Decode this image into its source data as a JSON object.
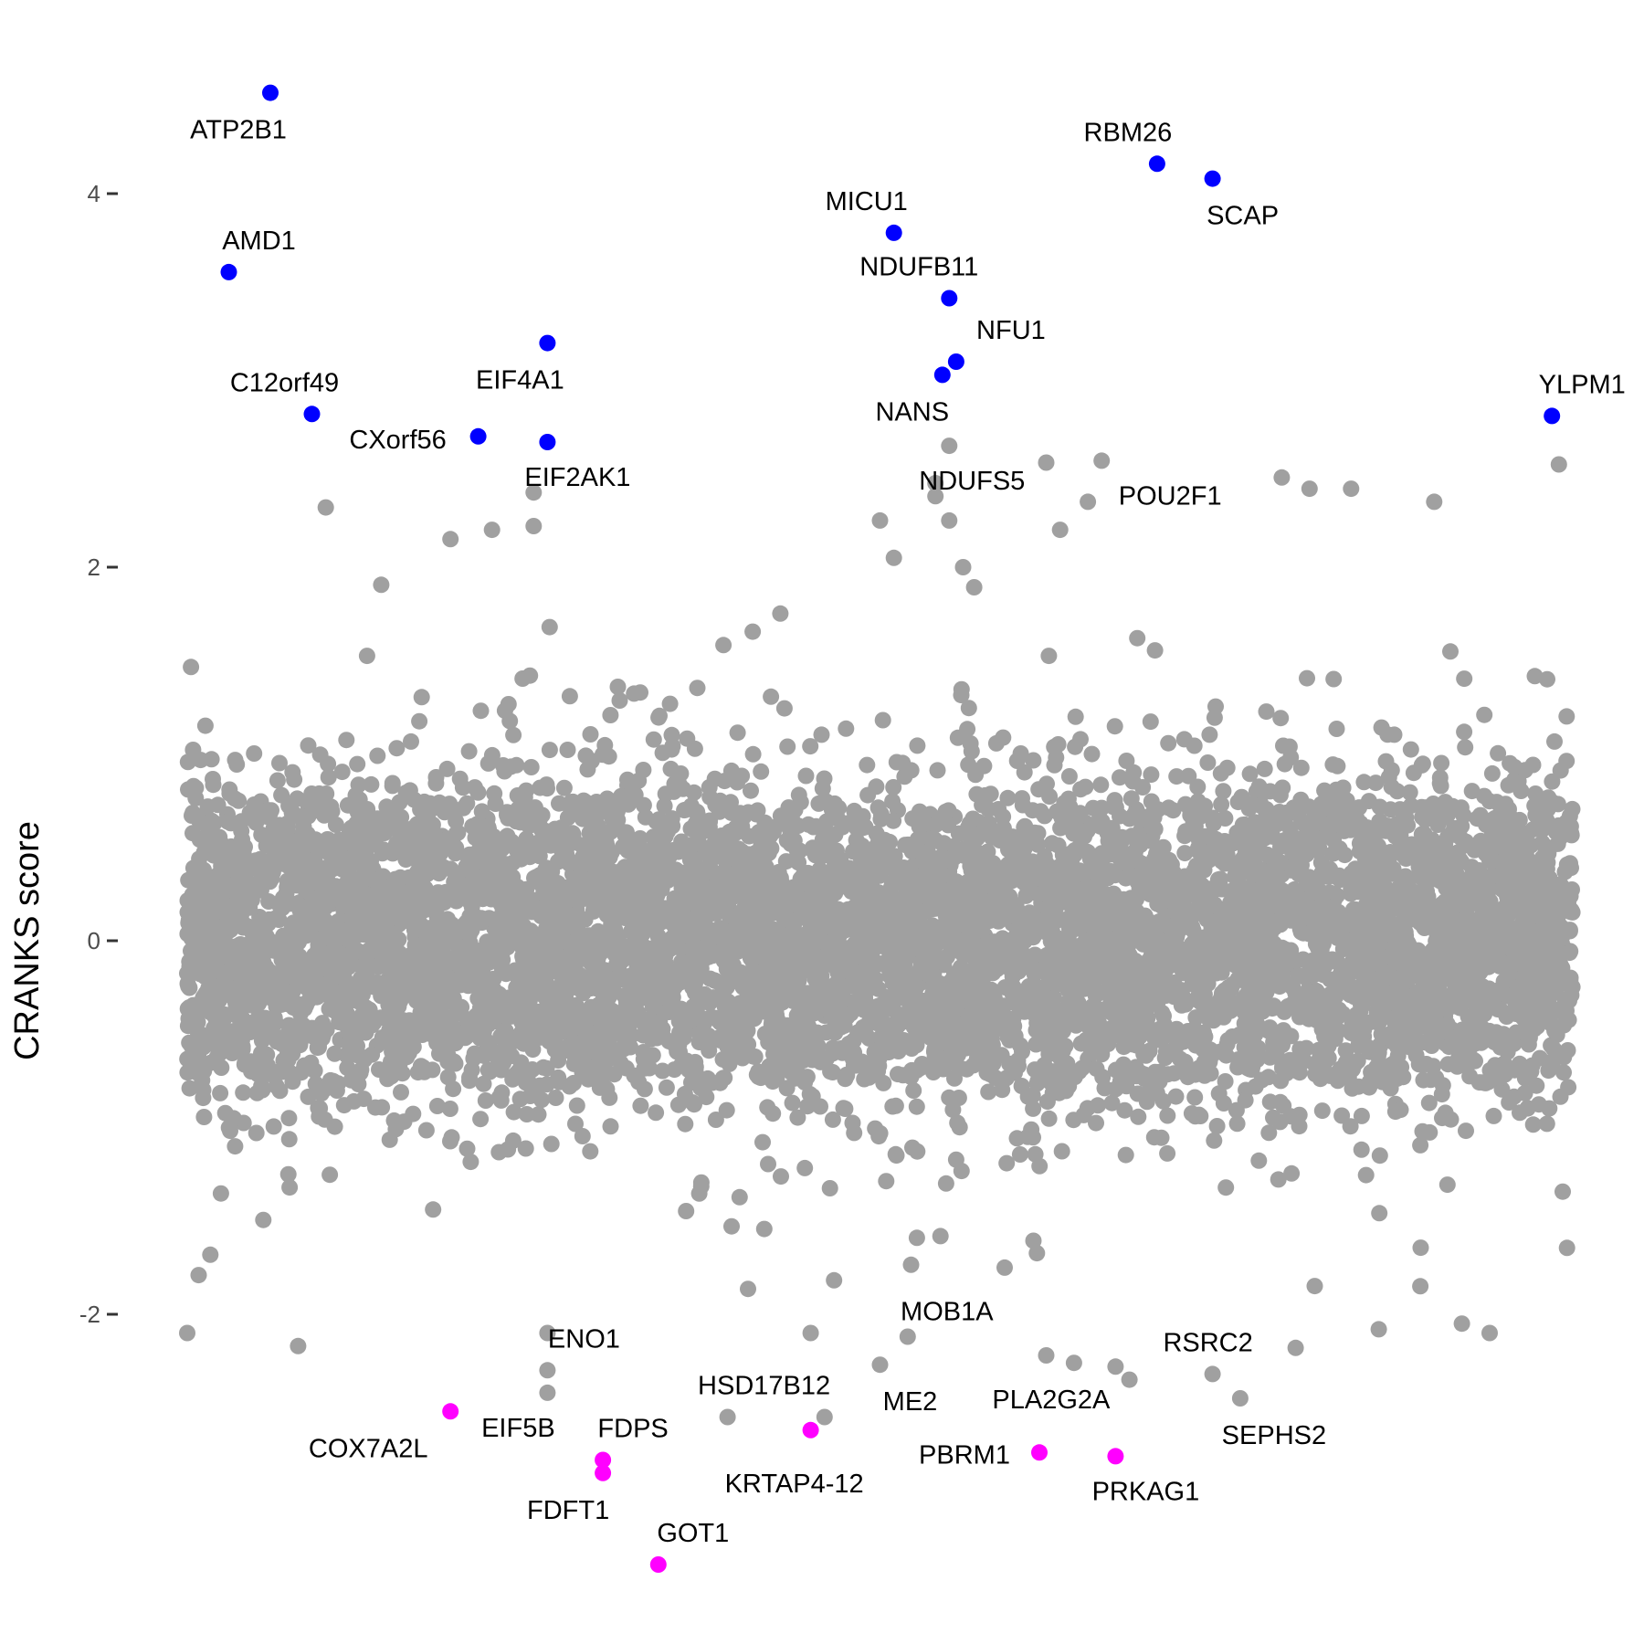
{
  "chart_data": {
    "type": "scatter",
    "ylabel": "CRANKS score",
    "xlabel": "",
    "ylim": [
      -3.45,
      4.8
    ],
    "xlim": [
      0,
      1
    ],
    "yticks": [
      -2,
      0,
      2,
      4
    ],
    "grid": false,
    "colors": {
      "background": "#a0a0a0",
      "positive": "#0000ff",
      "negative": "#ff00ff",
      "text": "#000000",
      "tick": "#4d4d4d"
    },
    "background_series": {
      "name": "",
      "count": 5600,
      "seed": 20240607,
      "note": "",
      "core_range": [
        -1.5,
        1.5
      ],
      "extra_points": [
        {
          "x": 0.1,
          "y": 2.32
        },
        {
          "x": 0.19,
          "y": 2.15
        },
        {
          "x": 0.22,
          "y": 2.2
        },
        {
          "x": 0.25,
          "y": 2.4
        },
        {
          "x": 0.25,
          "y": 2.22
        },
        {
          "x": 0.5,
          "y": 2.25
        },
        {
          "x": 0.51,
          "y": 2.05
        },
        {
          "x": 0.54,
          "y": 2.38
        },
        {
          "x": 0.54,
          "y": 2.45
        },
        {
          "x": 0.55,
          "y": 2.25
        },
        {
          "x": 0.56,
          "y": 2.0
        },
        {
          "x": 0.62,
          "y": 2.56
        },
        {
          "x": 0.63,
          "y": 2.2
        },
        {
          "x": 0.81,
          "y": 2.42
        },
        {
          "x": 0.79,
          "y": 2.48
        },
        {
          "x": 0.84,
          "y": 2.42
        },
        {
          "x": 0.99,
          "y": 2.55
        },
        {
          "x": 0.9,
          "y": 2.35
        },
        {
          "x": 0.65,
          "y": 2.35
        },
        {
          "x": 0.0,
          "y": -2.1
        },
        {
          "x": 0.08,
          "y": -2.17
        },
        {
          "x": 0.26,
          "y": -2.1
        },
        {
          "x": 0.45,
          "y": -2.1
        },
        {
          "x": 0.46,
          "y": -2.55
        },
        {
          "x": 0.59,
          "y": -1.75
        },
        {
          "x": 0.62,
          "y": -2.22
        },
        {
          "x": 0.67,
          "y": -2.28
        },
        {
          "x": 0.68,
          "y": -2.35
        },
        {
          "x": 0.8,
          "y": -2.18
        },
        {
          "x": 0.86,
          "y": -2.08
        },
        {
          "x": 0.92,
          "y": -2.05
        },
        {
          "x": 0.94,
          "y": -2.1
        },
        {
          "x": 0.89,
          "y": -1.85
        }
      ]
    },
    "highlighted": [
      {
        "gene": "ATP2B1",
        "x": 0.06,
        "y": 4.54,
        "group": "positive"
      },
      {
        "gene": "AMD1",
        "x": 0.03,
        "y": 3.58,
        "group": "positive"
      },
      {
        "gene": "C12orf49",
        "x": 0.09,
        "y": 2.82,
        "group": "positive"
      },
      {
        "gene": "CXorf56",
        "x": 0.21,
        "y": 2.7,
        "group": "positive"
      },
      {
        "gene": "EIF4A1",
        "x": 0.26,
        "y": 3.2,
        "group": "positive"
      },
      {
        "gene": "EIF2AK1",
        "x": 0.26,
        "y": 2.67,
        "group": "positive"
      },
      {
        "gene": "MICU1",
        "x": 0.51,
        "y": 3.79,
        "group": "positive"
      },
      {
        "gene": "NDUFB11",
        "x": 0.55,
        "y": 3.44,
        "group": "positive"
      },
      {
        "gene": "NFU1",
        "x": 0.555,
        "y": 3.1,
        "group": "positive"
      },
      {
        "gene": "NANS",
        "x": 0.545,
        "y": 3.03,
        "group": "positive"
      },
      {
        "gene": "NDUFS5",
        "x": 0.55,
        "y": 2.65,
        "group": "background"
      },
      {
        "gene": "POU2F1",
        "x": 0.66,
        "y": 2.57,
        "group": "background"
      },
      {
        "gene": "RBM26",
        "x": 0.7,
        "y": 4.16,
        "group": "positive"
      },
      {
        "gene": "SCAP",
        "x": 0.74,
        "y": 4.08,
        "group": "positive"
      },
      {
        "gene": "YLPM1",
        "x": 0.985,
        "y": 2.81,
        "group": "positive"
      },
      {
        "gene": "ENO1",
        "x": 0.26,
        "y": -2.3,
        "group": "background"
      },
      {
        "gene": "COX7A2L",
        "x": 0.19,
        "y": -2.52,
        "group": "negative"
      },
      {
        "gene": "EIF5B",
        "x": 0.26,
        "y": -2.42,
        "group": "background"
      },
      {
        "gene": "FDPS",
        "x": 0.3,
        "y": -2.78,
        "group": "negative"
      },
      {
        "gene": "FDFT1",
        "x": 0.3,
        "y": -2.85,
        "group": "negative"
      },
      {
        "gene": "GOT1",
        "x": 0.34,
        "y": -3.34,
        "group": "negative"
      },
      {
        "gene": "HSD17B12",
        "x": 0.39,
        "y": -2.55,
        "group": "background"
      },
      {
        "gene": "KRTAP4-12",
        "x": 0.45,
        "y": -2.62,
        "group": "negative"
      },
      {
        "gene": "MOB1A",
        "x": 0.52,
        "y": -2.12,
        "group": "background"
      },
      {
        "gene": "ME2",
        "x": 0.5,
        "y": -2.27,
        "group": "background"
      },
      {
        "gene": "PLA2G2A",
        "x": 0.64,
        "y": -2.26,
        "group": "background"
      },
      {
        "gene": "PBRM1",
        "x": 0.615,
        "y": -2.74,
        "group": "negative"
      },
      {
        "gene": "PRKAG1",
        "x": 0.67,
        "y": -2.76,
        "group": "negative"
      },
      {
        "gene": "RSRC2",
        "x": 0.74,
        "y": -2.32,
        "group": "background"
      },
      {
        "gene": "SEPHS2",
        "x": 0.76,
        "y": -2.45,
        "group": "background"
      }
    ]
  }
}
